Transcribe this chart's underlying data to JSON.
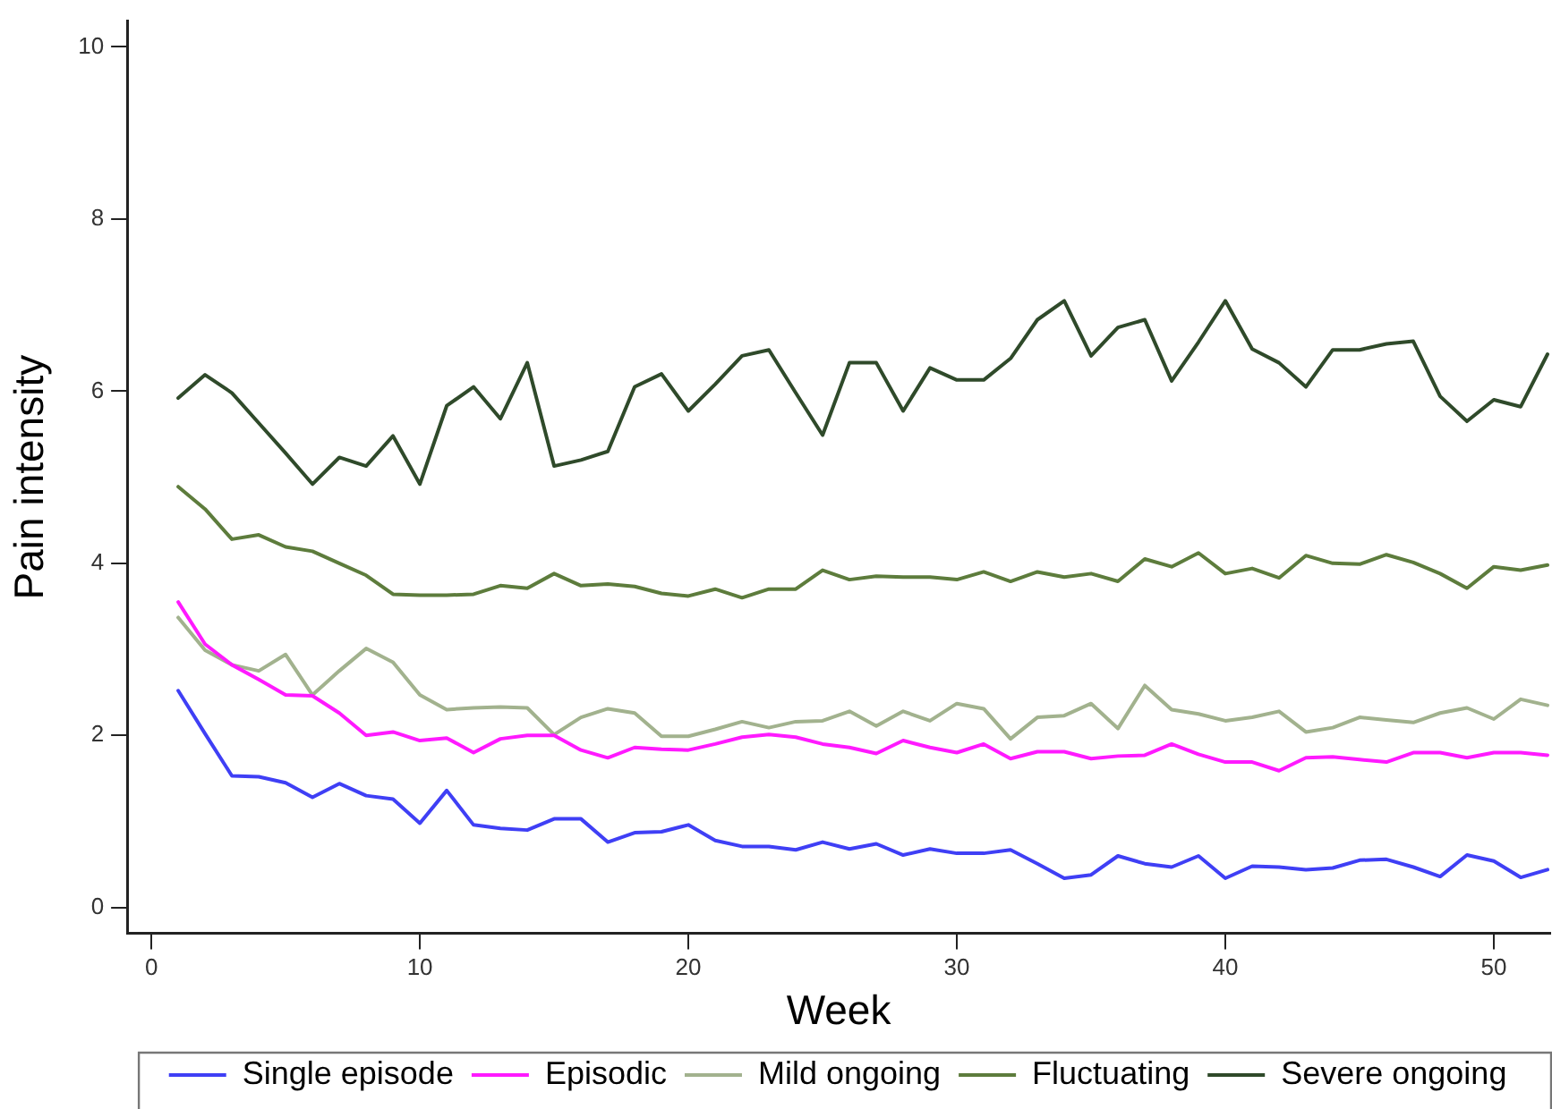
{
  "chart_data": {
    "type": "line",
    "xlabel": "Week",
    "ylabel": "Pain intensity",
    "x": [
      1,
      2,
      3,
      4,
      5,
      6,
      7,
      8,
      9,
      10,
      11,
      12,
      13,
      14,
      15,
      16,
      17,
      18,
      19,
      20,
      21,
      22,
      23,
      24,
      25,
      26,
      27,
      28,
      29,
      30,
      31,
      32,
      33,
      34,
      35,
      36,
      37,
      38,
      39,
      40,
      41,
      42,
      43,
      44,
      45,
      46,
      47,
      48,
      49,
      50,
      51,
      52
    ],
    "xlim": [
      -0.9,
      52.1
    ],
    "xticks": [
      0,
      10,
      20,
      30,
      40,
      50
    ],
    "ylim": [
      -0.3,
      10.3
    ],
    "yticks": [
      0,
      2,
      4,
      6,
      8,
      10
    ],
    "grid": false,
    "legend": "bottom",
    "marker": "none",
    "line_style": "solid",
    "series": [
      {
        "name": "Single episode",
        "color": "#3f3ff5",
        "values": [
          2.52,
          2.02,
          1.53,
          1.52,
          1.45,
          1.28,
          1.44,
          1.3,
          1.26,
          0.98,
          1.36,
          0.96,
          0.92,
          0.9,
          1.03,
          1.03,
          0.76,
          0.87,
          0.88,
          0.96,
          0.78,
          0.71,
          0.71,
          0.67,
          0.76,
          0.68,
          0.74,
          0.61,
          0.68,
          0.63,
          0.63,
          0.67,
          0.51,
          0.34,
          0.38,
          0.6,
          0.51,
          0.47,
          0.6,
          0.34,
          0.48,
          0.47,
          0.44,
          0.46,
          0.55,
          0.56,
          0.47,
          0.36,
          0.61,
          0.54,
          0.35,
          0.44
        ]
      },
      {
        "name": "Episodic",
        "color": "#ff1aff",
        "values": [
          3.55,
          3.06,
          2.82,
          2.65,
          2.47,
          2.46,
          2.26,
          2.0,
          2.04,
          1.94,
          1.97,
          1.8,
          1.96,
          2.0,
          2.0,
          1.83,
          1.74,
          1.86,
          1.84,
          1.83,
          1.9,
          1.98,
          2.01,
          1.98,
          1.9,
          1.86,
          1.79,
          1.94,
          1.86,
          1.8,
          1.9,
          1.73,
          1.81,
          1.81,
          1.73,
          1.76,
          1.77,
          1.9,
          1.78,
          1.69,
          1.69,
          1.59,
          1.74,
          1.75,
          1.72,
          1.69,
          1.8,
          1.8,
          1.74,
          1.8,
          1.8,
          1.77
        ]
      },
      {
        "name": "Mild ongoing",
        "color": "#a2b28e",
        "values": [
          3.37,
          2.99,
          2.82,
          2.75,
          2.94,
          2.47,
          2.75,
          3.01,
          2.85,
          2.47,
          2.3,
          2.32,
          2.33,
          2.32,
          2.01,
          2.21,
          2.31,
          2.26,
          1.99,
          1.99,
          2.07,
          2.16,
          2.09,
          2.16,
          2.17,
          2.28,
          2.11,
          2.28,
          2.17,
          2.37,
          2.31,
          1.96,
          2.21,
          2.23,
          2.37,
          2.08,
          2.58,
          2.3,
          2.25,
          2.17,
          2.21,
          2.28,
          2.04,
          2.09,
          2.21,
          2.18,
          2.15,
          2.26,
          2.32,
          2.19,
          2.42,
          2.35
        ]
      },
      {
        "name": "Fluctuating",
        "color": "#5d7c3c",
        "values": [
          4.89,
          4.63,
          4.28,
          4.33,
          4.19,
          4.14,
          4.0,
          3.86,
          3.64,
          3.63,
          3.63,
          3.64,
          3.74,
          3.71,
          3.88,
          3.74,
          3.76,
          3.73,
          3.65,
          3.62,
          3.7,
          3.6,
          3.7,
          3.7,
          3.92,
          3.81,
          3.85,
          3.84,
          3.84,
          3.81,
          3.9,
          3.79,
          3.9,
          3.84,
          3.88,
          3.79,
          4.05,
          3.96,
          4.12,
          3.88,
          3.94,
          3.83,
          4.09,
          4.0,
          3.99,
          4.1,
          4.01,
          3.88,
          3.71,
          3.96,
          3.92,
          3.98
        ]
      },
      {
        "name": "Severe ongoing",
        "color": "#2f4a2a",
        "values": [
          5.92,
          6.19,
          5.98,
          5.63,
          5.28,
          4.92,
          5.23,
          5.13,
          5.48,
          4.92,
          5.83,
          6.05,
          5.68,
          6.33,
          5.13,
          5.2,
          5.3,
          6.05,
          6.2,
          5.77,
          6.08,
          6.41,
          6.48,
          5.98,
          5.49,
          6.33,
          6.33,
          5.77,
          6.27,
          6.13,
          6.13,
          6.38,
          6.83,
          7.05,
          6.41,
          6.74,
          6.83,
          6.12,
          6.57,
          7.05,
          6.49,
          6.33,
          6.05,
          6.48,
          6.48,
          6.55,
          6.58,
          5.94,
          5.65,
          5.9,
          5.82,
          6.43
        ]
      }
    ]
  }
}
